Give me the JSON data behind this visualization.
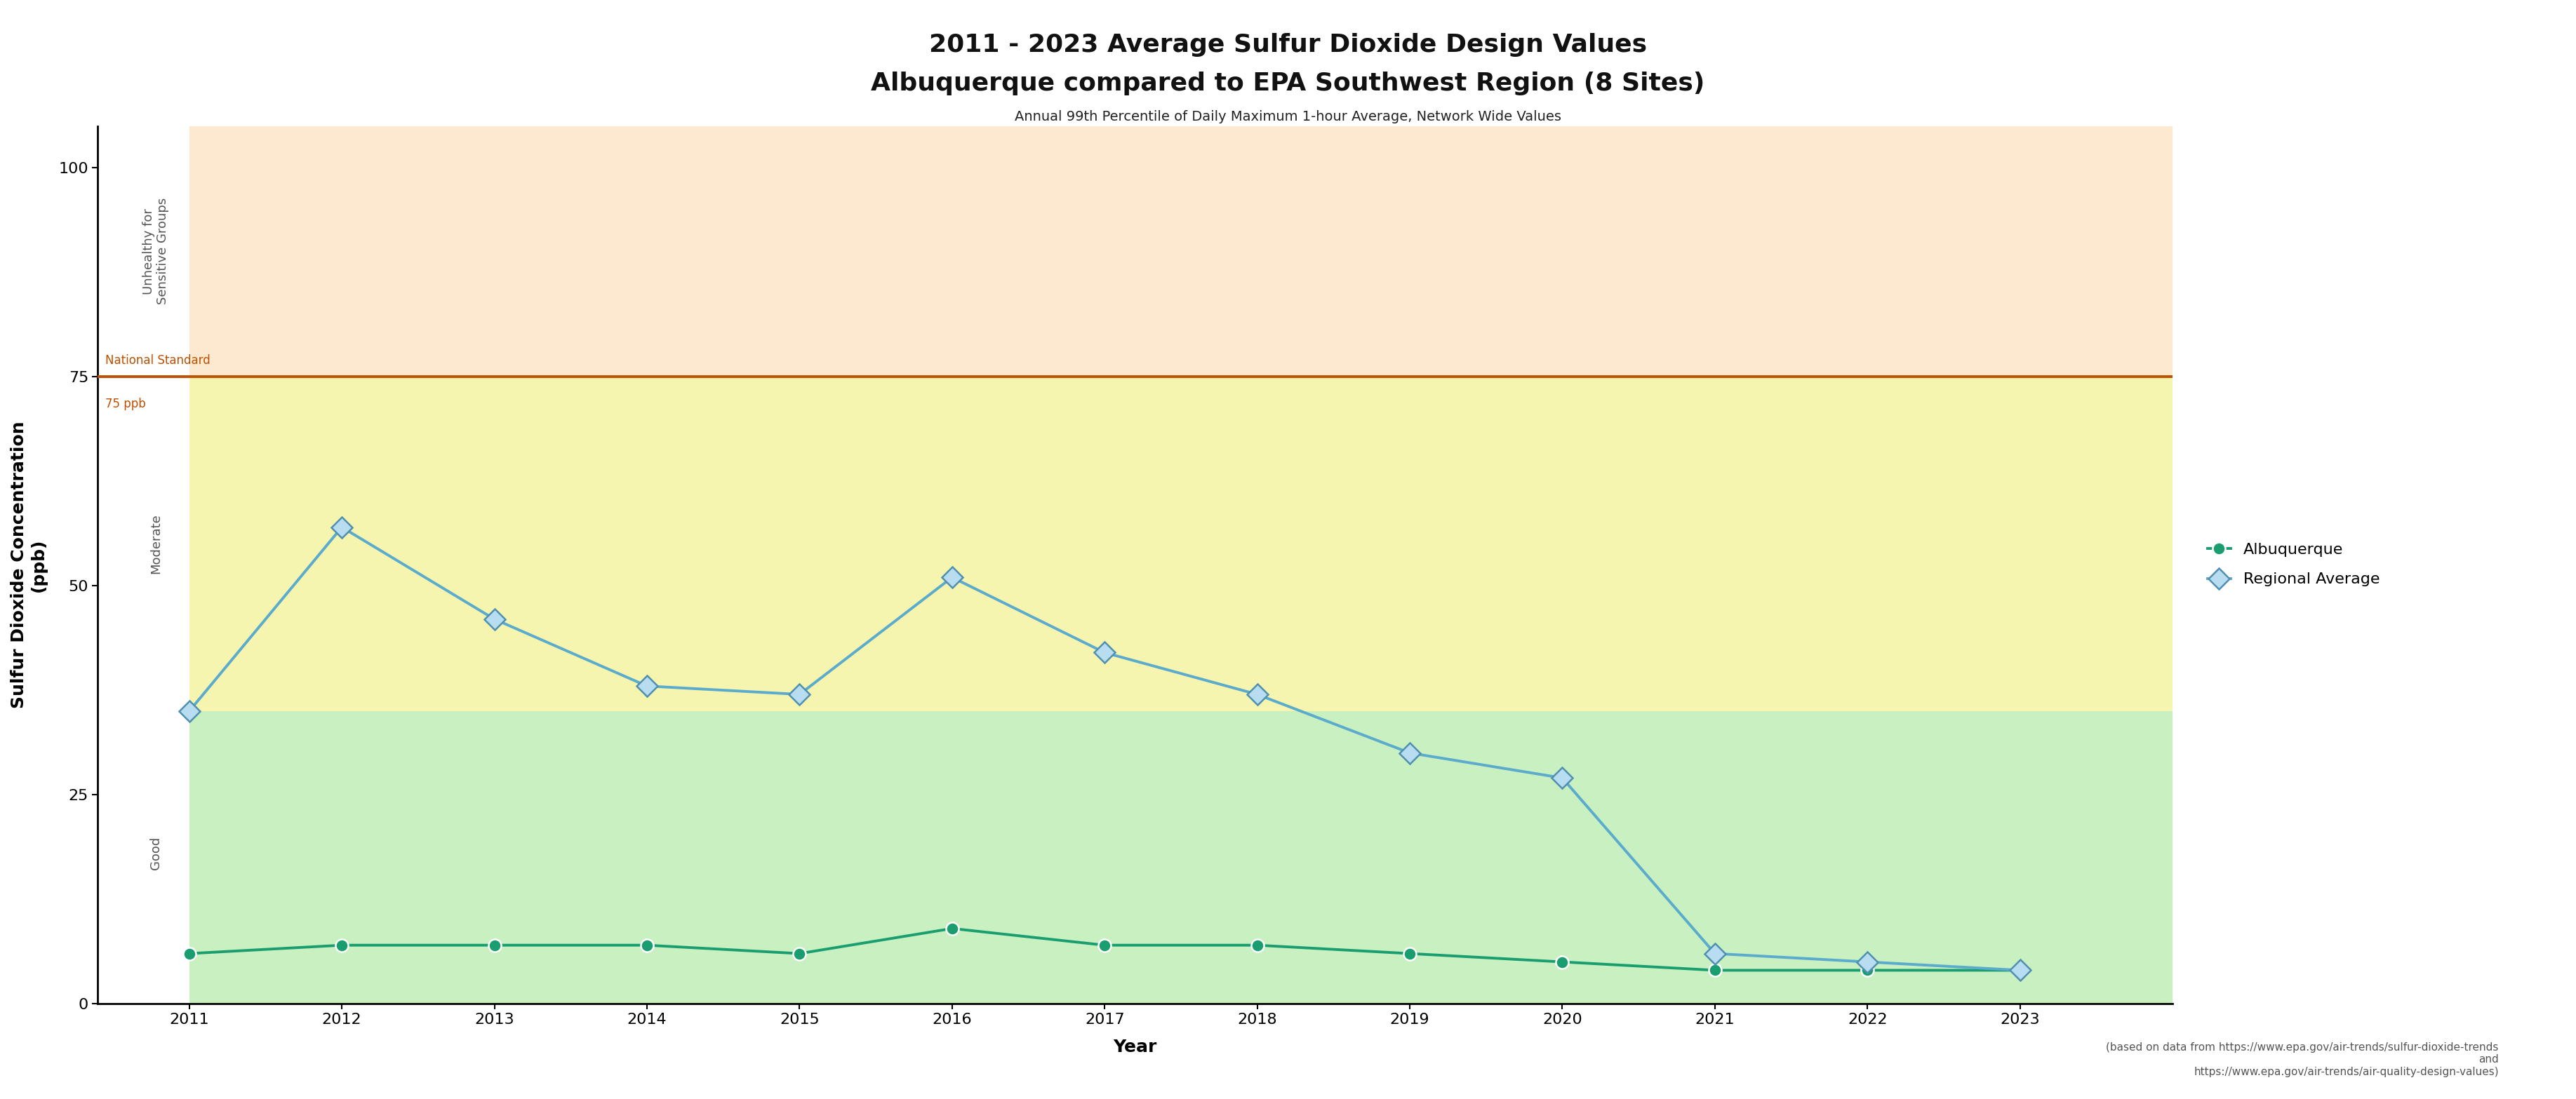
{
  "title_line1": "2011 - 2023 Average Sulfur Dioxide Design Values",
  "title_line2": "Albuquerque compared to EPA Southwest Region (8 Sites)",
  "subtitle": "Annual 99th Percentile of Daily Maximum 1-hour Average, Network Wide Values",
  "xlabel": "Year",
  "ylabel": "Sulfur Dioxide Concentration\n(ppb)",
  "years": [
    2011,
    2012,
    2013,
    2014,
    2015,
    2016,
    2017,
    2018,
    2019,
    2020,
    2021,
    2022,
    2023
  ],
  "albuquerque": [
    6,
    7,
    7,
    7,
    6,
    9,
    7,
    7,
    6,
    5,
    4,
    4,
    4
  ],
  "regional_avg": [
    35,
    57,
    46,
    38,
    37,
    51,
    42,
    37,
    30,
    27,
    6,
    5,
    4
  ],
  "ylim": [
    0,
    105
  ],
  "xlim_min": 2010.4,
  "xlim_max": 2024.0,
  "national_standard": 75,
  "national_standard_color": "#c05000",
  "national_standard_label": "National Standard",
  "ppb_label": "75 ppb",
  "zone_good_min": 0,
  "zone_good_max": 35,
  "zone_moderate_max": 75,
  "zone_unhealthy_max": 105,
  "zone_good_color": "#c8f0c0",
  "zone_moderate_color": "#f5f5b0",
  "zone_unhealthy_color": "#fde8d0",
  "zone_good_label": "Good",
  "zone_moderate_label": "Moderate",
  "zone_unhealthy_label": "Unhealthy for\nSensitive Groups",
  "albuquerque_color": "#1a9e70",
  "albuquerque_marker": "o",
  "regional_color": "#5aabcc",
  "regional_marker": "D",
  "legend_albuquerque": "Albuquerque",
  "legend_regional": "Regional Average",
  "footnote": "(based on data from https://www.epa.gov/air-trends/sulfur-dioxide-trends\nand\nhttps://www.epa.gov/air-trends/air-quality-design-values)",
  "bg_color": "#ffffff",
  "title_fontsize": 26,
  "subtitle_fontsize": 14,
  "axis_label_fontsize": 18,
  "tick_fontsize": 16,
  "legend_fontsize": 16,
  "zone_label_fontsize": 13,
  "footnote_fontsize": 11,
  "ns_label_fontsize": 12,
  "ppb_label_fontsize": 12
}
